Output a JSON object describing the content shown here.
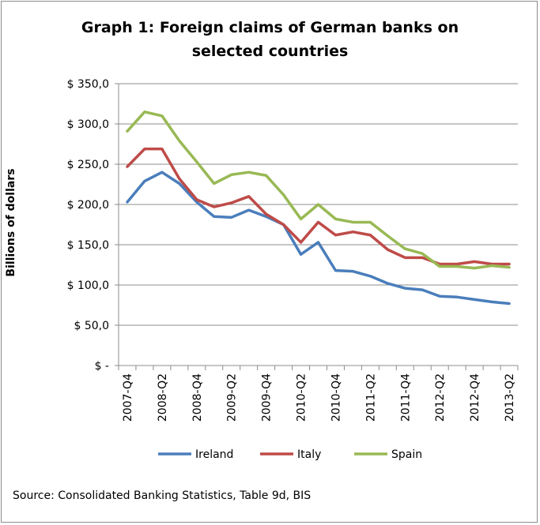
{
  "title_line1": "Graph 1: Foreign claims of German banks on",
  "title_line2": "selected countries",
  "source": "Source: Consolidated Banking Statistics, Table 9d, BIS",
  "chart_data": {
    "type": "line",
    "title": "Graph 1: Foreign claims of German banks on selected countries",
    "ylabel": "Billions of dollars",
    "ylim": [
      0,
      350
    ],
    "yticks": [
      0,
      50,
      100,
      150,
      200,
      250,
      300,
      350
    ],
    "ytick_labels": [
      "$ -",
      "$ 50,0",
      "$ 100,0",
      "$ 150,0",
      "$ 200,0",
      "$ 250,0",
      "$ 300,0",
      "$ 350,0"
    ],
    "x": [
      "2007-Q4",
      "2008-Q1",
      "2008-Q2",
      "2008-Q3",
      "2008-Q4",
      "2009-Q1",
      "2009-Q2",
      "2009-Q3",
      "2009-Q4",
      "2010-Q1",
      "2010-Q2",
      "2010-Q3",
      "2010-Q4",
      "2011-Q1",
      "2011-Q2",
      "2011-Q3",
      "2011-Q4",
      "2012-Q1",
      "2012-Q2",
      "2012-Q3",
      "2012-Q4",
      "2013-Q1",
      "2013-Q2"
    ],
    "xtick_labels": [
      "2007-Q4",
      "2008-Q2",
      "2008-Q4",
      "2009-Q2",
      "2009-Q4",
      "2010-Q2",
      "2010-Q4",
      "2011-Q2",
      "2011-Q4",
      "2012-Q2",
      "2012-Q4",
      "2013-Q2"
    ],
    "grid": true,
    "legend_position": "bottom",
    "series": [
      {
        "name": "Ireland",
        "color": "#4a7ebb",
        "values": [
          203,
          229,
          240,
          226,
          203,
          185,
          184,
          193,
          185,
          175,
          138,
          153,
          118,
          117,
          111,
          102,
          96,
          94,
          86,
          85,
          82,
          79,
          77
        ]
      },
      {
        "name": "Italy",
        "color": "#be4b48",
        "values": [
          247,
          269,
          269,
          232,
          206,
          197,
          202,
          210,
          188,
          175,
          153,
          178,
          162,
          166,
          162,
          144,
          134,
          134,
          126,
          126,
          129,
          126,
          126
        ]
      },
      {
        "name": "Spain",
        "color": "#98b954",
        "values": [
          291,
          315,
          310,
          279,
          253,
          226,
          237,
          240,
          236,
          212,
          182,
          200,
          182,
          178,
          178,
          161,
          145,
          139,
          123,
          123,
          121,
          124,
          122
        ]
      }
    ]
  }
}
